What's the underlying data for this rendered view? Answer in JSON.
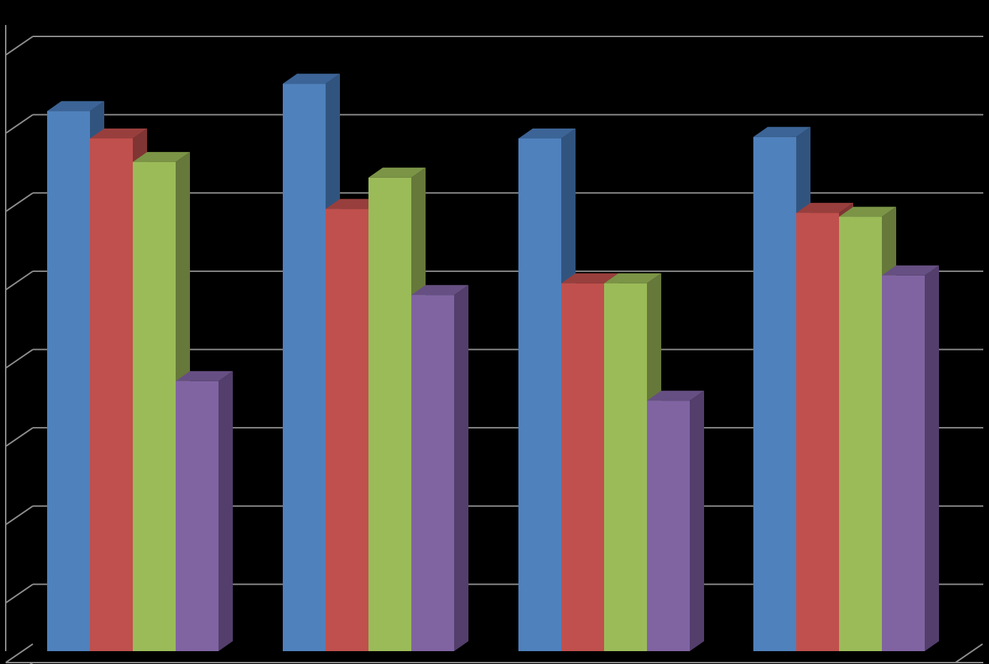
{
  "chart_data": {
    "type": "bar",
    "style": "3d-clustered-column",
    "grid": true,
    "legend": "none",
    "ylim": [
      0,
      8
    ],
    "categories": [
      "",
      "",
      "",
      ""
    ],
    "series": [
      {
        "values": [
          6.9,
          7.25,
          6.55,
          6.57
        ],
        "colors": {
          "front": "#4F81BD",
          "side": "#31547F",
          "top": "#3C6496"
        }
      },
      {
        "values": [
          6.55,
          5.65,
          4.7,
          5.6
        ],
        "colors": {
          "front": "#C0504D",
          "side": "#7F3533",
          "top": "#983F3D"
        }
      },
      {
        "values": [
          6.25,
          6.05,
          4.7,
          5.55
        ],
        "colors": {
          "front": "#9BBB59",
          "side": "#66783A",
          "top": "#7B9446"
        }
      },
      {
        "values": [
          3.45,
          4.55,
          3.2,
          4.8
        ],
        "colors": {
          "front": "#8064A2",
          "side": "#533E6C",
          "top": "#664F82"
        }
      }
    ],
    "colors": {
      "background": "#000000",
      "gridline": "#8C8C8C"
    }
  }
}
